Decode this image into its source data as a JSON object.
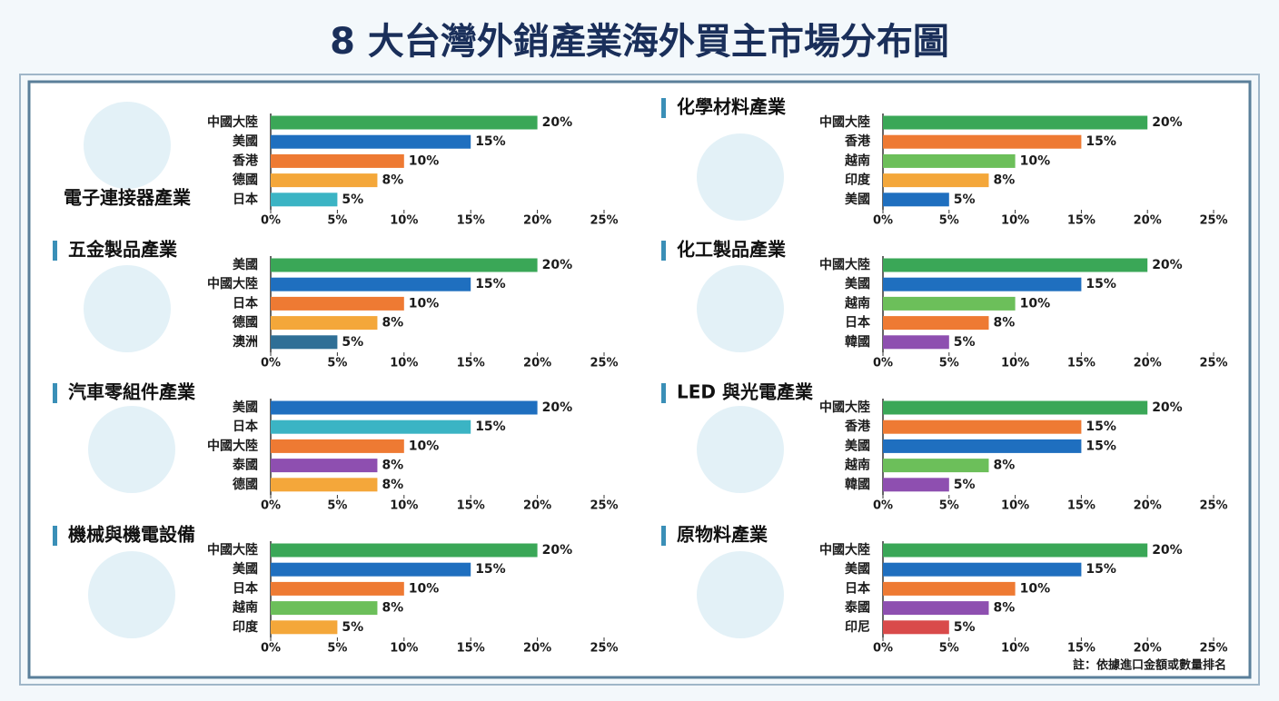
{
  "title": "8 大台灣外銷產業海外買主市場分布圖",
  "note": "註：依據進口金額或數量排名",
  "chart_data": [
    {
      "type": "bar",
      "title": "電子連接器產業",
      "categories": [
        "中國大陸",
        "美國",
        "香港",
        "德國",
        "日本"
      ],
      "values": [
        20,
        15,
        10,
        8,
        5
      ],
      "value_labels": [
        "20%",
        "15%",
        "10%",
        "8%",
        "5%"
      ],
      "colors": [
        "#3aa757",
        "#1f6fbf",
        "#ee7a33",
        "#f4a73a",
        "#3bb4c4"
      ],
      "xlim": [
        0,
        25
      ],
      "xticks": [
        {
          "value": 0,
          "label": "0%"
        },
        {
          "value": 5,
          "label": "5%"
        },
        {
          "value": 10,
          "label": "10%"
        },
        {
          "value": 15,
          "label": "15%"
        },
        {
          "value": 20,
          "label": "20%"
        },
        {
          "value": 25,
          "label": "25%"
        }
      ]
    },
    {
      "type": "bar",
      "title": "五金製品產業",
      "categories": [
        "美國",
        "中國大陸",
        "日本",
        "德國",
        "澳洲"
      ],
      "values": [
        20,
        15,
        10,
        8,
        5
      ],
      "value_labels": [
        "20%",
        "15%",
        "10%",
        "8%",
        "5%"
      ],
      "colors": [
        "#3aa757",
        "#1f6fbf",
        "#ee7a33",
        "#f4a73a",
        "#2f6f96"
      ],
      "xlim": [
        0,
        25
      ],
      "xticks": [
        {
          "value": 0,
          "label": "0%"
        },
        {
          "value": 5,
          "label": "5%"
        },
        {
          "value": 10,
          "label": "10%"
        },
        {
          "value": 15,
          "label": "15%"
        },
        {
          "value": 20,
          "label": "20%"
        },
        {
          "value": 25,
          "label": "25%"
        }
      ]
    },
    {
      "type": "bar",
      "title": "汽車零組件產業",
      "categories": [
        "美國",
        "日本",
        "中國大陸",
        "泰國",
        "德國"
      ],
      "values": [
        20,
        15,
        10,
        8,
        8
      ],
      "value_labels": [
        "20%",
        "15%",
        "10%",
        "8%",
        "8%"
      ],
      "colors": [
        "#1f6fbf",
        "#3bb4c4",
        "#ee7a33",
        "#8e4fb0",
        "#f4a73a"
      ],
      "xlim": [
        0,
        25
      ],
      "xticks": [
        {
          "value": 0,
          "label": "0%"
        },
        {
          "value": 5,
          "label": "5%"
        },
        {
          "value": 10,
          "label": "10%"
        },
        {
          "value": 15,
          "label": "15%"
        },
        {
          "value": 20,
          "label": "20%"
        },
        {
          "value": 25,
          "label": "25%"
        }
      ]
    },
    {
      "type": "bar",
      "title": "機械與機電設備",
      "categories": [
        "中國大陸",
        "美國",
        "日本",
        "越南",
        "印度"
      ],
      "values": [
        20,
        15,
        10,
        8,
        5
      ],
      "value_labels": [
        "20%",
        "15%",
        "10%",
        "8%",
        "5%"
      ],
      "colors": [
        "#3aa757",
        "#1f6fbf",
        "#ee7a33",
        "#6cbf5a",
        "#f4a73a"
      ],
      "xlim": [
        0,
        25
      ],
      "xticks": [
        {
          "value": 0,
          "label": "0%"
        },
        {
          "value": 5,
          "label": "5%"
        },
        {
          "value": 10,
          "label": "10%"
        },
        {
          "value": 15,
          "label": "15%"
        },
        {
          "value": 20,
          "label": "20%"
        },
        {
          "value": 25,
          "label": "25%"
        }
      ]
    },
    {
      "type": "bar",
      "title": "化學材料產業",
      "categories": [
        "中國大陸",
        "香港",
        "越南",
        "印度",
        "美國"
      ],
      "values": [
        20,
        15,
        10,
        8,
        5
      ],
      "value_labels": [
        "20%",
        "15%",
        "10%",
        "8%",
        "5%"
      ],
      "colors": [
        "#3aa757",
        "#ee7a33",
        "#6cbf5a",
        "#f4a73a",
        "#1f6fbf"
      ],
      "xlim": [
        0,
        25
      ],
      "xticks": [
        {
          "value": 0,
          "label": "0%"
        },
        {
          "value": 5,
          "label": "5%"
        },
        {
          "value": 10,
          "label": "10%"
        },
        {
          "value": 15,
          "label": "15%"
        },
        {
          "value": 20,
          "label": "20%"
        },
        {
          "value": 25,
          "label": "25%"
        }
      ]
    },
    {
      "type": "bar",
      "title": "化工製品產業",
      "categories": [
        "中國大陸",
        "美國",
        "越南",
        "日本",
        "韓國"
      ],
      "values": [
        20,
        15,
        10,
        8,
        5
      ],
      "value_labels": [
        "20%",
        "15%",
        "10%",
        "8%",
        "5%"
      ],
      "colors": [
        "#3aa757",
        "#1f6fbf",
        "#6cbf5a",
        "#ee7a33",
        "#8e4fb0"
      ],
      "xlim": [
        0,
        25
      ],
      "xticks": [
        {
          "value": 0,
          "label": "0%"
        },
        {
          "value": 5,
          "label": "5%"
        },
        {
          "value": 10,
          "label": "10%"
        },
        {
          "value": 15,
          "label": "15%"
        },
        {
          "value": 20,
          "label": "20%"
        },
        {
          "value": 25,
          "label": "25%"
        }
      ]
    },
    {
      "type": "bar",
      "title": "LED 與光電產業",
      "categories": [
        "中國大陸",
        "香港",
        "美國",
        "越南",
        "韓國"
      ],
      "values": [
        20,
        15,
        15,
        8,
        5
      ],
      "value_labels": [
        "20%",
        "15%",
        "15%",
        "8%",
        "5%"
      ],
      "colors": [
        "#3aa757",
        "#ee7a33",
        "#1f6fbf",
        "#6cbf5a",
        "#8e4fb0"
      ],
      "xlim": [
        0,
        25
      ],
      "xticks": [
        {
          "value": 0,
          "label": "0%"
        },
        {
          "value": 5,
          "label": "5%"
        },
        {
          "value": 10,
          "label": "10%"
        },
        {
          "value": 15,
          "label": "15%"
        },
        {
          "value": 20,
          "label": "20%"
        },
        {
          "value": 25,
          "label": "25%"
        }
      ]
    },
    {
      "type": "bar",
      "title": "原物料產業",
      "categories": [
        "中國大陸",
        "美國",
        "日本",
        "泰國",
        "印尼"
      ],
      "values": [
        20,
        15,
        10,
        8,
        5
      ],
      "value_labels": [
        "20%",
        "15%",
        "10%",
        "8%",
        "5%"
      ],
      "colors": [
        "#3aa757",
        "#1f6fbf",
        "#ee7a33",
        "#8e4fb0",
        "#d94a4a"
      ],
      "xlim": [
        0,
        25
      ],
      "xticks": [
        {
          "value": 0,
          "label": "0%"
        },
        {
          "value": 5,
          "label": "5%"
        },
        {
          "value": 10,
          "label": "10%"
        },
        {
          "value": 15,
          "label": "15%"
        },
        {
          "value": 20,
          "label": "20%"
        },
        {
          "value": 25,
          "label": "25%"
        }
      ]
    }
  ]
}
